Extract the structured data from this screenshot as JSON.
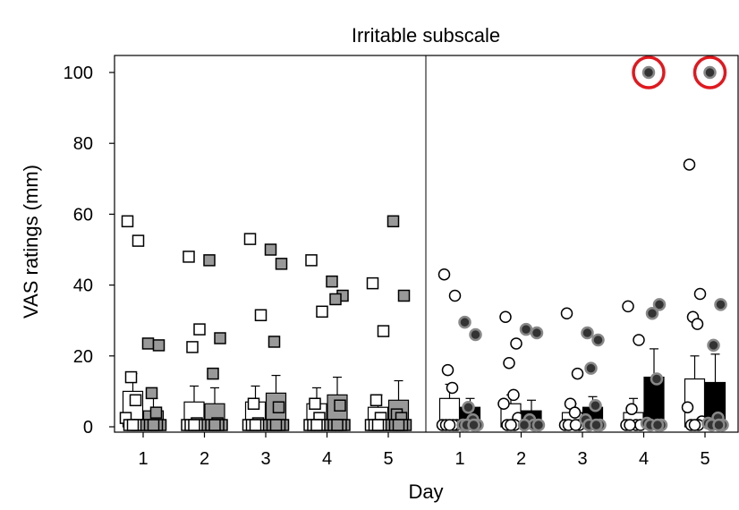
{
  "chart_data": {
    "type": "bar",
    "title": "Irritable subscale",
    "xlabel": "Day",
    "ylabel": "VAS ratings (mm)",
    "ylim": [
      0,
      105
    ],
    "yticks": [
      0,
      20,
      40,
      60,
      80,
      100
    ],
    "panels": [
      {
        "categories": [
          "1",
          "2",
          "3",
          "4",
          "5"
        ],
        "marker": "square",
        "series": [
          {
            "color": "#ffffff",
            "means": [
              10,
              7,
              7,
              6.5,
              5.5
            ],
            "errors": [
              15,
              11.5,
              11.5,
              11,
              9
            ],
            "points": [
              [
                58,
                52.5,
                14,
                7.5,
                2.5,
                0.5,
                0.5,
                0.5,
                0.5
              ],
              [
                48,
                27.5,
                22.5,
                1,
                0.5,
                0.5,
                0.5,
                0.5,
                0.5
              ],
              [
                53,
                31.5,
                6.5,
                1,
                0.5,
                0.5,
                0.5,
                0.5,
                0.5
              ],
              [
                47,
                32.5,
                6.5,
                2.5,
                0.5,
                0.5,
                0.5,
                0.5,
                0.5
              ],
              [
                40.5,
                27,
                7.5,
                2.5,
                0.5,
                0.5,
                0.5,
                0.5,
                0.5
              ]
            ]
          },
          {
            "color": "#999999",
            "means": [
              4.5,
              6.5,
              9.5,
              9,
              7.5
            ],
            "errors": [
              8,
              11,
              14.5,
              14,
              13
            ],
            "points": [
              [
                23.5,
                23,
                9.5,
                4,
                0.5,
                0.5,
                0.5,
                0.5,
                0.5
              ],
              [
                47,
                25,
                15,
                1,
                0.5,
                0.5,
                0.5,
                0.5,
                0.5
              ],
              [
                50,
                46,
                24,
                5.5,
                0.5,
                0.5,
                0.5,
                0.5,
                0.5
              ],
              [
                41,
                37,
                36,
                6,
                0.5,
                0.5,
                0.5,
                0.5,
                0.5
              ],
              [
                58,
                37,
                3.5,
                2.5,
                0.5,
                0.5,
                0.5,
                0.5,
                0.5
              ]
            ]
          }
        ]
      },
      {
        "categories": [
          "1",
          "2",
          "3",
          "4",
          "5"
        ],
        "marker": "circle",
        "series": [
          {
            "color": "#ffffff",
            "means": [
              8,
              6.5,
              4,
              4,
              13.5
            ],
            "errors": [
              12,
              9,
              6.5,
              8,
              20
            ],
            "points": [
              [
                43,
                37,
                16,
                11,
                0.5,
                0.5,
                0.5,
                0.5,
                0.5
              ],
              [
                31,
                23.5,
                18,
                9,
                6.5,
                2.5,
                0.5,
                0.5,
                0.5
              ],
              [
                32,
                15,
                6.5,
                4,
                0.5,
                0.5,
                0.5,
                0.5
              ],
              [
                34,
                24.5,
                5,
                0.5,
                0.5,
                0.5,
                0.5
              ],
              [
                74,
                37.5,
                31,
                29,
                5.5,
                1.5,
                0.5,
                0.5,
                0.5
              ]
            ]
          },
          {
            "color": "#000000",
            "means": [
              5.5,
              4.5,
              5.5,
              14,
              12.5
            ],
            "errors": [
              8,
              7.5,
              8.5,
              22,
              20.5
            ],
            "points": [
              [
                29.5,
                26,
                5.5,
                2,
                0.5,
                0.5,
                0.5,
                0.5
              ],
              [
                27.5,
                26.5,
                2,
                0.5,
                0.5,
                0.5
              ],
              [
                26.5,
                24.5,
                16.5,
                6,
                2,
                0.5,
                0.5,
                0.5
              ],
              [
                100,
                34.5,
                32,
                13.5,
                1,
                0.5,
                0.5,
                0.5
              ],
              [
                100,
                34.5,
                23,
                2.5,
                1,
                0.5,
                0.5,
                0.5
              ]
            ]
          }
        ],
        "highlighted": [
          {
            "category": "4",
            "value": 100,
            "color": "#e0191f"
          },
          {
            "category": "5",
            "value": 100,
            "color": "#e0191f"
          }
        ]
      }
    ],
    "grid": false,
    "legend": "none"
  }
}
